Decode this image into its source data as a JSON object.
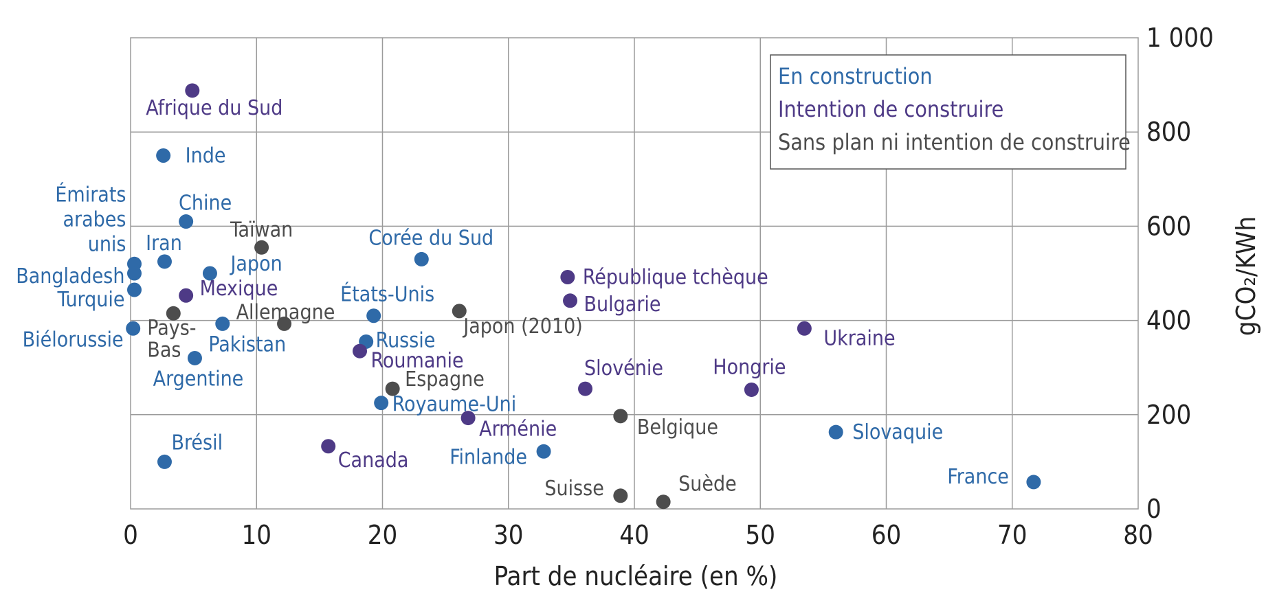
{
  "chart_data": {
    "type": "scatter",
    "title": "",
    "xlabel": "Part de nucléaire (en %)",
    "ylabel": "gCO₂/KWh",
    "xlim": [
      0,
      80
    ],
    "ylim": [
      0,
      1000
    ],
    "x_ticks": [
      "0",
      "10",
      "20",
      "30",
      "40",
      "50",
      "60",
      "70",
      "80"
    ],
    "y_ticks": [
      "0",
      "200",
      "400",
      "600",
      "800",
      "1 000"
    ],
    "grid": true,
    "y_axis_side": "right",
    "legend_position": "top-right",
    "colors": {
      "construction": "#2f6aa8",
      "intention": "#4e3a86",
      "none": "#4d4d4d"
    },
    "series": [
      {
        "key": "construction",
        "name": "En construction",
        "points": [
          {
            "label": "Inde",
            "x": 2.6,
            "y": 750
          },
          {
            "label": "Chine",
            "x": 4.4,
            "y": 610
          },
          {
            "label": "Émirats arabes unis",
            "x": 0.3,
            "y": 520
          },
          {
            "label": "Iran",
            "x": 2.7,
            "y": 525
          },
          {
            "label": "Bangladesh",
            "x": 0.3,
            "y": 500
          },
          {
            "label": "Japon",
            "x": 6.3,
            "y": 500
          },
          {
            "label": "Turquie",
            "x": 0.3,
            "y": 465
          },
          {
            "label": "Biélorussie",
            "x": 0.2,
            "y": 383
          },
          {
            "label": "Pakistan",
            "x": 7.3,
            "y": 393
          },
          {
            "label": "Argentine",
            "x": 5.1,
            "y": 320
          },
          {
            "label": "Corée du Sud",
            "x": 23.1,
            "y": 530
          },
          {
            "label": "États-Unis",
            "x": 19.3,
            "y": 410
          },
          {
            "label": "Russie",
            "x": 18.7,
            "y": 355
          },
          {
            "label": "Royaume-Uni",
            "x": 19.9,
            "y": 225
          },
          {
            "label": "Brésil",
            "x": 2.7,
            "y": 100
          },
          {
            "label": "Finlande",
            "x": 32.8,
            "y": 122
          },
          {
            "label": "Slovaquie",
            "x": 56.0,
            "y": 163
          },
          {
            "label": "France",
            "x": 71.7,
            "y": 57
          }
        ]
      },
      {
        "key": "intention",
        "name": "Intention de construire",
        "points": [
          {
            "label": "Afrique du Sud",
            "x": 4.9,
            "y": 888
          },
          {
            "label": "Mexique",
            "x": 4.4,
            "y": 453
          },
          {
            "label": "Roumanie",
            "x": 18.2,
            "y": 335
          },
          {
            "label": "République tchèque",
            "x": 34.7,
            "y": 492
          },
          {
            "label": "Bulgarie",
            "x": 34.9,
            "y": 442
          },
          {
            "label": "Ukraine",
            "x": 53.5,
            "y": 383
          },
          {
            "label": "Slovénie",
            "x": 36.1,
            "y": 255
          },
          {
            "label": "Hongrie",
            "x": 49.3,
            "y": 253
          },
          {
            "label": "Arménie",
            "x": 26.8,
            "y": 193
          },
          {
            "label": "Canada",
            "x": 15.7,
            "y": 133
          }
        ]
      },
      {
        "key": "none",
        "name": "Sans plan ni intention de construire",
        "points": [
          {
            "label": "Taïwan",
            "x": 10.4,
            "y": 555
          },
          {
            "label": "Pays-Bas",
            "x": 3.4,
            "y": 415
          },
          {
            "label": "Allemagne",
            "x": 12.2,
            "y": 393
          },
          {
            "label": "Japon (2010)",
            "x": 26.1,
            "y": 420
          },
          {
            "label": "Espagne",
            "x": 20.8,
            "y": 255
          },
          {
            "label": "Belgique",
            "x": 38.9,
            "y": 197
          },
          {
            "label": "Suisse",
            "x": 38.9,
            "y": 28
          },
          {
            "label": "Suède",
            "x": 42.3,
            "y": 15
          }
        ]
      }
    ]
  }
}
